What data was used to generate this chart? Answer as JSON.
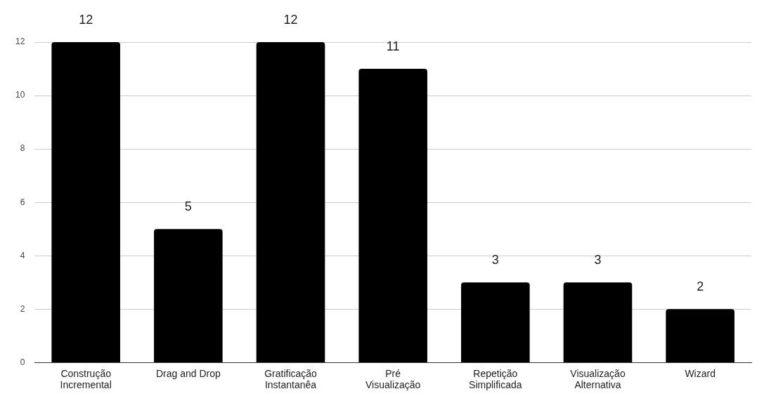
{
  "chart_data": {
    "type": "bar",
    "categories": [
      "Construção Incremental",
      "Drag and Drop",
      "Gratificação Instantanêa",
      "Pré Visualização",
      "Repetição Simplificada",
      "Visualização Alternativa",
      "Wizard"
    ],
    "values": [
      12,
      5,
      12,
      11,
      3,
      3,
      2
    ],
    "color": "#000000",
    "ylim": [
      0,
      12
    ],
    "yticks": [
      0,
      2,
      4,
      6,
      8,
      10,
      12
    ],
    "grid": "y",
    "data_labels": true,
    "legend": false
  }
}
